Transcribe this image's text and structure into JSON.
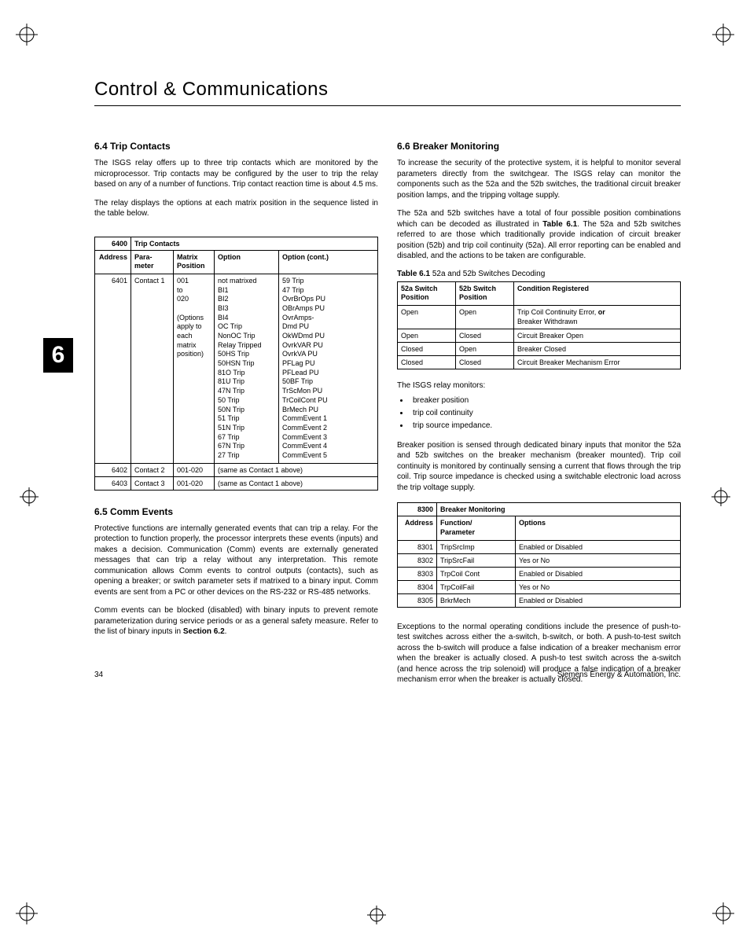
{
  "chapter_tab": "6",
  "page_title": "Control & Communications",
  "page_number": "34",
  "footer_company": "Siemens Energy & Automation, Inc.",
  "left": {
    "s64": {
      "heading": "6.4  Trip Contacts",
      "p1": "The ISGS relay offers up to three trip contacts which are monitored by the microprocessor. Trip contacts may be configured by the user to trip the relay based on any of a number of functions. Trip contact reaction time is about 4.5 ms.",
      "p2": "The relay displays the options at each matrix position in the sequence listed in the table below."
    },
    "tbl6400": {
      "group_addr": "6400",
      "group_title": "Trip Contacts",
      "headers": [
        "Address",
        "Para-\nmeter",
        "Matrix\nPosition",
        "Option",
        "Option (cont.)"
      ],
      "row1": {
        "addr": "6401",
        "param": "Contact 1",
        "matrix": "001\nto\n020\n\n(Options\napply to\neach\nmatrix\nposition)",
        "option": "not matrixed\nBI1\nBI2\nBI3\nBI4\nOC Trip\nNonOC Trip\nRelay Tripped\n50HS Trip\n50HSN Trip\n81O Trip\n81U Trip\n47N Trip\n50 Trip\n50N Trip\n51 Trip\n51N Trip\n67 Trip\n67N Trip\n27 Trip",
        "option_cont": "59 Trip\n47 Trip\nOvrBrOps PU\nOBrAmps PU\nOvrAmps-\nDmd PU\nOkWDmd PU\nOvrkVAR PU\nOvrkVA PU\nPFLag PU\nPFLead PU\n50BF Trip\nTrScMon PU\nTrCoilCont PU\nBrMech PU\nCommEvent 1\nCommEvent 2\nCommEvent 3\nCommEvent 4\nCommEvent 5"
      },
      "row2": {
        "addr": "6402",
        "param": "Contact 2",
        "matrix": "001-020",
        "span": "(same as Contact 1 above)"
      },
      "row3": {
        "addr": "6403",
        "param": "Contact 3",
        "matrix": "001-020",
        "span": "(same as Contact 1 above)"
      }
    },
    "s65": {
      "heading": "6.5  Comm Events",
      "p1": "Protective functions are internally generated events that can trip a relay. For the protection to function properly, the processor interprets these events (inputs) and makes a decision. Communication (Comm) events are externally generated messages that can trip a relay without any interpretation. This remote communication allows Comm events to control outputs (contacts), such as opening a breaker; or switch parameter sets if matrixed to a binary input. Comm events are sent from a PC or other devices on the RS-232 or RS-485 networks.",
      "p2_a": "Comm events can be blocked (disabled) with binary inputs to prevent remote parameterization during service periods or as a general safety measure. Refer to the list of binary inputs in ",
      "p2_b": "Section 6.2",
      "p2_c": "."
    }
  },
  "right": {
    "s66": {
      "heading": "6.6  Breaker Monitoring",
      "p1": "To increase the security of the protective system, it is helpful to monitor several parameters directly from the switchgear. The ISGS relay can monitor the components such as the 52a and the 52b switches, the traditional circuit breaker position lamps, and the tripping voltage supply.",
      "p2_a": "The 52a and 52b switches have a total of four possible position combinations which can be decoded as illustrated in ",
      "p2_b": "Table 6.1",
      "p2_c": ". The 52a and 52b switches referred to are those which traditionally provide indication of circuit breaker position (52b) and trip coil continuity (52a). All error reporting can be enabled and disabled, and the actions to be taken are configurable."
    },
    "tbl61": {
      "caption_b": "Table 6.1",
      "caption_r": " 52a and 52b Switches Decoding",
      "headers": [
        "52a Switch\nPosition",
        "52b Switch\nPosition",
        "Condition Registered"
      ],
      "rows": [
        [
          "Open",
          "Open",
          "Trip Coil Continuity Error, or\nBreaker Withdrawn"
        ],
        [
          "Open",
          "Closed",
          "Circuit Breaker Open"
        ],
        [
          "Closed",
          "Open",
          "Breaker Closed"
        ],
        [
          "Closed",
          "Closed",
          "Circuit Breaker Mechanism Error"
        ]
      ]
    },
    "monitors_intro": "The ISGS relay monitors:",
    "monitors": [
      "breaker position",
      "trip coil continuity",
      "trip source impedance."
    ],
    "p3": "Breaker position is sensed through dedicated binary inputs that monitor the 52a and 52b switches on the breaker mechanism (breaker mounted). Trip coil continuity is monitored by continually sensing a current that flows through the trip coil. Trip source impedance is checked using a switchable electronic load across the trip voltage supply.",
    "tbl8300": {
      "group_addr": "8300",
      "group_title": "Breaker Monitoring",
      "headers": [
        "Address",
        "Function/\nParameter",
        "Options"
      ],
      "rows": [
        [
          "8301",
          "TripSrcImp",
          "Enabled or Disabled"
        ],
        [
          "8302",
          "TripSrcFail",
          "Yes or No"
        ],
        [
          "8303",
          "TrpCoil Cont",
          "Enabled or Disabled"
        ],
        [
          "8304",
          "TrpCoilFail",
          "Yes or No"
        ],
        [
          "8305",
          "BrkrMech",
          "Enabled or Disabled"
        ]
      ]
    },
    "p4": "Exceptions to the normal operating conditions include the presence of push-to-test switches across either the a-switch, b-switch, or both. A push-to-test switch across the b-switch will produce a false indication of a breaker mechanism error when the breaker is actually closed. A push-to test switch across the a-switch (and hence across the trip solenoid) will produce a false indication of a breaker mechanism error when the breaker is actually closed."
  }
}
